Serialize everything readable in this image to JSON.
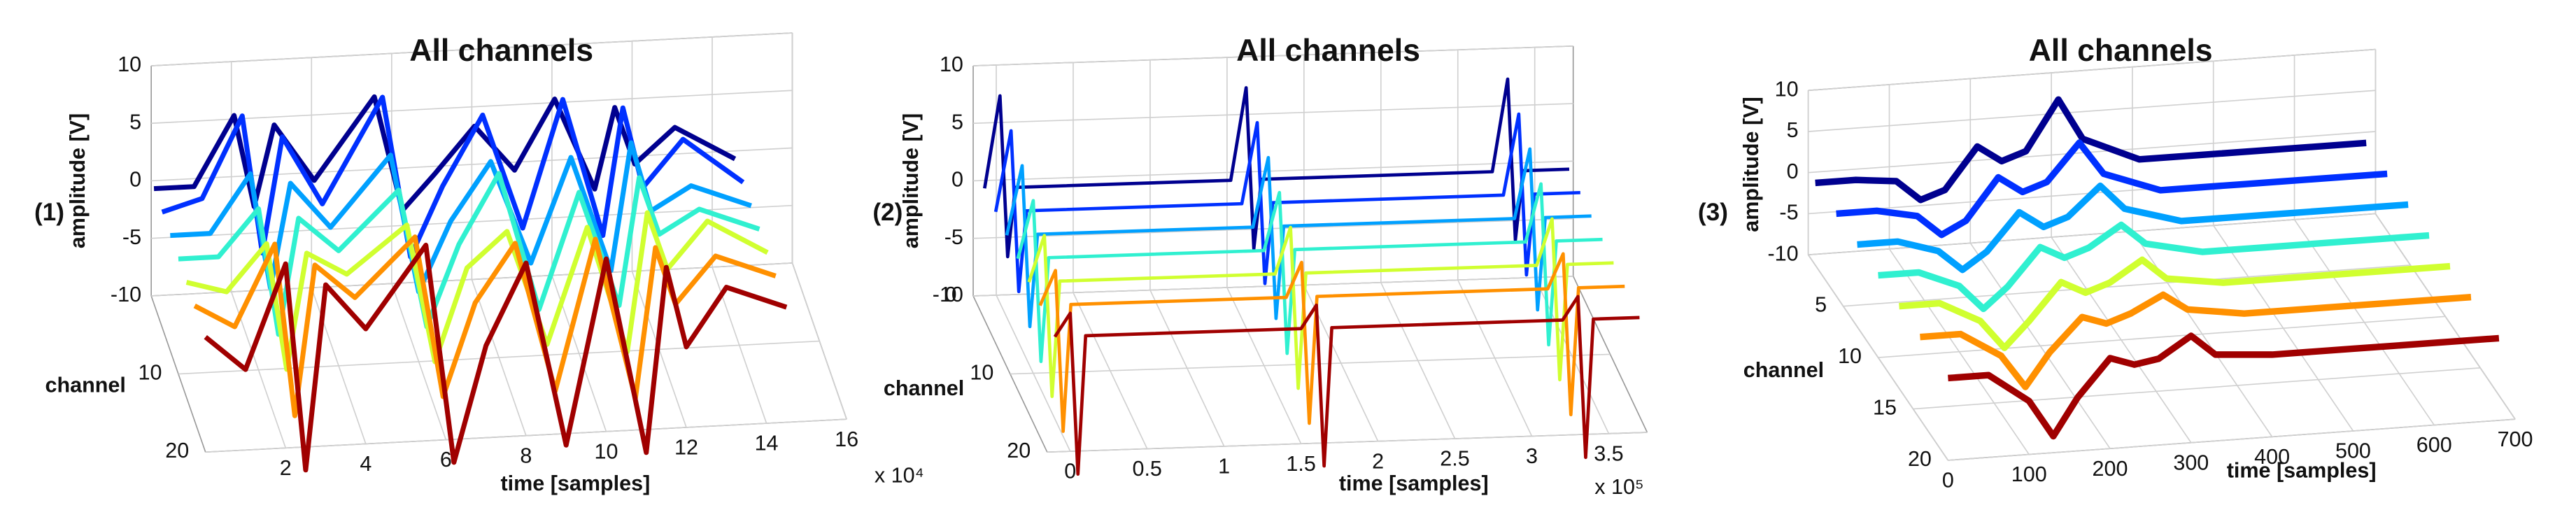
{
  "chart_data": [
    {
      "type": "waterfall3d",
      "label": "(1)",
      "title": "All channels",
      "x_label": "time [samples]",
      "y_label": "channel",
      "z_label": "amplitude [V]",
      "x_multiplier": "x 10⁴",
      "x": [
        0,
        10000,
        20000,
        25000,
        30000,
        40000,
        55000,
        62000,
        70000,
        80000,
        90000,
        100000,
        110000,
        115000,
        120000,
        130000,
        145000
      ],
      "xlim": [
        0,
        160000
      ],
      "xticks": [
        {
          "value": 20000,
          "label": "2"
        },
        {
          "value": 40000,
          "label": "4"
        },
        {
          "value": 60000,
          "label": "6"
        },
        {
          "value": 80000,
          "label": "8"
        },
        {
          "value": 100000,
          "label": "10"
        },
        {
          "value": 120000,
          "label": "12"
        },
        {
          "value": 140000,
          "label": "14"
        },
        {
          "value": 160000,
          "label": "16"
        }
      ],
      "ylim": [
        0,
        20
      ],
      "yticks": [
        10,
        20
      ],
      "zlim": [
        -10,
        10
      ],
      "zticks": [
        10,
        5,
        0,
        -5,
        -10
      ],
      "series": [
        {
          "channel": 1,
          "color": "#00008f",
          "values": [
            0,
            0,
            6,
            -2,
            5,
            0,
            7,
            -3,
            0,
            4,
            0,
            6,
            -2,
            5,
            0,
            3,
            0
          ]
        },
        {
          "channel": 4,
          "color": "#0030ff",
          "values": [
            0,
            1,
            8,
            -4,
            6,
            0,
            9,
            -5,
            1,
            7,
            -3,
            8,
            -4,
            7,
            0,
            4,
            0
          ]
        },
        {
          "channel": 7,
          "color": "#00a0ff",
          "values": [
            0,
            0,
            5,
            -5,
            4,
            0,
            6,
            -6,
            0,
            5,
            -4,
            5,
            -5,
            6,
            0,
            2,
            0
          ]
        },
        {
          "channel": 10,
          "color": "#30f0d0",
          "values": [
            0,
            0,
            4,
            -7,
            3,
            0,
            5,
            -7,
            0,
            6,
            -6,
            4,
            -6,
            5,
            0,
            2,
            0
          ]
        },
        {
          "channel": 13,
          "color": "#d0ff30",
          "values": [
            0,
            -1,
            3,
            -8,
            2,
            0,
            4,
            -8,
            0,
            3,
            -7,
            3,
            -8,
            4,
            -1,
            3,
            0
          ]
        },
        {
          "channel": 16,
          "color": "#ff9000",
          "values": [
            0,
            -2,
            5,
            -10,
            3,
            0,
            5,
            -9,
            -1,
            4,
            -9,
            4,
            -10,
            3,
            -2,
            2,
            0
          ]
        },
        {
          "channel": 20,
          "color": "#a00000",
          "values": [
            0,
            -3,
            6,
            -12,
            4,
            0,
            7,
            -12,
            -2,
            5,
            -11,
            5,
            -12,
            4,
            -3,
            2,
            0
          ]
        }
      ]
    },
    {
      "type": "waterfall3d",
      "label": "(2)",
      "title": "All channels",
      "x_label": "time [samples]",
      "y_label": "channel",
      "z_label": "amplitude [V]",
      "x_multiplier": "x 10⁵",
      "x": [
        -10000,
        0,
        5000,
        10000,
        150000,
        160000,
        165000,
        170000,
        320000,
        330000,
        335000,
        340000,
        370000
      ],
      "xlim": [
        -15000,
        375000
      ],
      "xticks": [
        0,
        {
          "value": 50000,
          "label": "0.5"
        },
        {
          "value": 100000,
          "label": "1"
        },
        {
          "value": 150000,
          "label": "1.5"
        },
        {
          "value": 200000,
          "label": "2"
        },
        {
          "value": 250000,
          "label": "2.5"
        },
        {
          "value": 300000,
          "label": "3"
        },
        {
          "value": 350000,
          "label": "3.5"
        }
      ],
      "ylim": [
        0,
        20
      ],
      "yticks": [
        0,
        10,
        20
      ],
      "zlim": [
        -10,
        10
      ],
      "zticks": [
        10,
        5,
        0,
        -5,
        -10
      ],
      "series": [
        {
          "channel": 1,
          "color": "#00008f",
          "values": [
            0,
            8,
            -6,
            0,
            0,
            8,
            -6,
            0,
            0,
            8,
            -6,
            0,
            0
          ]
        },
        {
          "channel": 4,
          "color": "#0030ff",
          "values": [
            0,
            7,
            -7,
            0,
            0,
            7,
            -7,
            0,
            0,
            7,
            -7,
            0,
            0
          ]
        },
        {
          "channel": 7,
          "color": "#00a0ff",
          "values": [
            0,
            6,
            -8,
            0,
            0,
            6,
            -8,
            0,
            0,
            6,
            -8,
            0,
            0
          ]
        },
        {
          "channel": 10,
          "color": "#30f0d0",
          "values": [
            0,
            5,
            -9,
            0,
            0,
            5,
            -9,
            0,
            0,
            5,
            -9,
            0,
            0
          ]
        },
        {
          "channel": 13,
          "color": "#d0ff30",
          "values": [
            0,
            4,
            -10,
            0,
            0,
            4,
            -10,
            0,
            0,
            4,
            -10,
            0,
            0
          ]
        },
        {
          "channel": 16,
          "color": "#ff9000",
          "values": [
            0,
            3,
            -11,
            0,
            0,
            3,
            -11,
            0,
            0,
            3,
            -11,
            0,
            0
          ]
        },
        {
          "channel": 20,
          "color": "#a00000",
          "values": [
            0,
            2,
            -12,
            0,
            0,
            2,
            -12,
            0,
            0,
            2,
            -12,
            0,
            0
          ]
        }
      ]
    },
    {
      "type": "waterfall3d",
      "label": "(3)",
      "title": "All channels",
      "x_label": "time [samples]",
      "y_label": "channel",
      "z_label": "amplitude [V]",
      "x": [
        0,
        50,
        100,
        130,
        160,
        200,
        230,
        260,
        300,
        330,
        400,
        500,
        680
      ],
      "xlim": [
        0,
        700
      ],
      "xticks": [
        0,
        100,
        200,
        300,
        400,
        500,
        600,
        700
      ],
      "ylim": [
        0,
        20
      ],
      "yticks": [
        5,
        10,
        15,
        20
      ],
      "zlim": [
        -10,
        10
      ],
      "zticks": [
        10,
        5,
        0,
        -5,
        -10
      ],
      "series": [
        {
          "channel": 1,
          "color": "#00008f",
          "values": [
            0,
            0,
            -0.5,
            -3,
            -2,
            3,
            1,
            2,
            8,
            3,
            0,
            0,
            0
          ]
        },
        {
          "channel": 4,
          "color": "#0030ff",
          "values": [
            0,
            0,
            -1,
            -3.5,
            -2,
            3,
            1,
            2,
            6.5,
            2.5,
            0,
            0,
            0
          ]
        },
        {
          "channel": 7,
          "color": "#00a0ff",
          "values": [
            0,
            0,
            -1.5,
            -4,
            -2,
            2.5,
            0.5,
            1.5,
            5,
            2,
            0,
            0,
            0
          ]
        },
        {
          "channel": 10,
          "color": "#30f0d0",
          "values": [
            0,
            0,
            -2,
            -5,
            -2.5,
            2,
            0.5,
            1.5,
            4,
            1.5,
            0,
            0,
            0
          ]
        },
        {
          "channel": 13,
          "color": "#d0ff30",
          "values": [
            0,
            0,
            -2.5,
            -6,
            -3,
            1.5,
            0,
            1,
            3.5,
            1,
            0,
            0,
            0
          ]
        },
        {
          "channel": 16,
          "color": "#ff9000",
          "values": [
            0,
            0,
            -3,
            -7,
            -3,
            1,
            0,
            1,
            3,
            1,
            0,
            0,
            0
          ]
        },
        {
          "channel": 20,
          "color": "#a00000",
          "values": [
            0,
            0,
            -3.5,
            -8,
            -3.5,
            1,
            0,
            0.5,
            3,
            0.5,
            0,
            0,
            0
          ]
        }
      ]
    }
  ]
}
